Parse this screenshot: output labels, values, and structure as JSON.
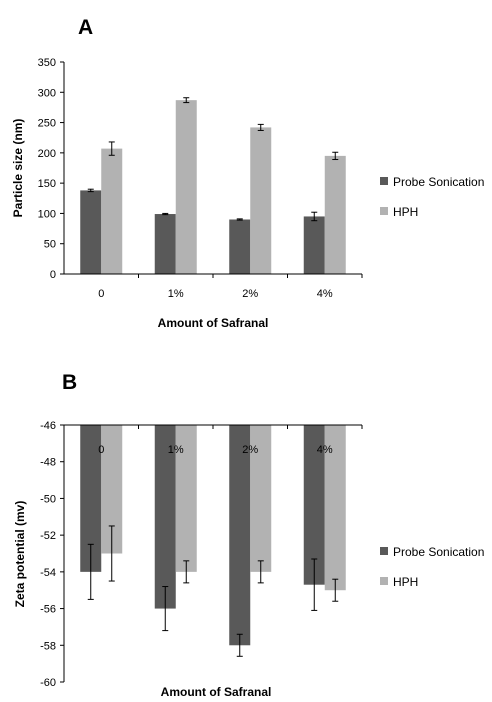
{
  "chart_data": [
    {
      "type": "bar",
      "panel_label": "A",
      "categories": [
        "0",
        "1%",
        "2%",
        "4%"
      ],
      "series": [
        {
          "name": "Probe Sonication",
          "values": [
            138,
            99,
            90,
            95
          ],
          "errors": [
            2,
            1,
            1,
            7
          ],
          "color": "#595959"
        },
        {
          "name": "HPH",
          "values": [
            207,
            287,
            242,
            195
          ],
          "errors": [
            11,
            4,
            5,
            6
          ],
          "color": "#b2b2b2"
        }
      ],
      "xlabel": "Amount of Safranal",
      "ylabel": "Particle size (nm)",
      "ylim": [
        0,
        350
      ],
      "yticks": [
        0,
        50,
        100,
        150,
        200,
        250,
        300,
        350
      ],
      "grid": false,
      "legend": "right"
    },
    {
      "type": "bar",
      "panel_label": "B",
      "categories": [
        "0",
        "1%",
        "2%",
        "4%"
      ],
      "series": [
        {
          "name": "Probe Sonication",
          "values": [
            -54,
            -56,
            -58,
            -54.7
          ],
          "errors": [
            1.5,
            1.2,
            0.6,
            1.4
          ],
          "color": "#595959"
        },
        {
          "name": "HPH",
          "values": [
            -53,
            -54,
            -54,
            -55
          ],
          "errors": [
            1.5,
            0.6,
            0.6,
            0.6
          ],
          "color": "#b2b2b2"
        }
      ],
      "xlabel": "Amount of Safranal",
      "ylabel": "Zeta potential (mv)",
      "ylim": [
        -60,
        -46
      ],
      "yticks": [
        -46,
        -48,
        -50,
        -52,
        -54,
        -56,
        -58,
        -60
      ],
      "category_labels_position": "top",
      "grid": false,
      "legend": "right"
    }
  ]
}
